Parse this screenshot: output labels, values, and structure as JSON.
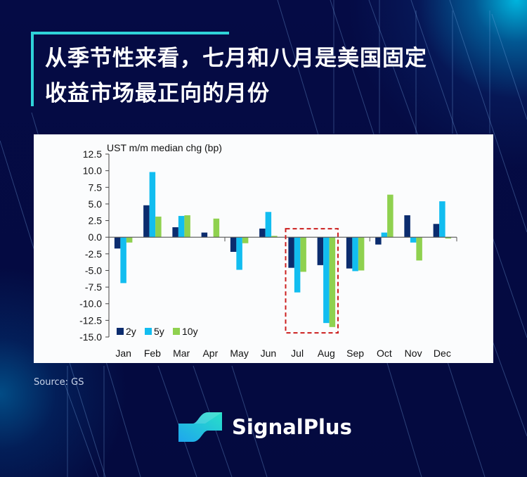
{
  "header": {
    "title_line1": "从季节性来看，七月和八月是美国固定",
    "title_line2": "收益市场最正向的月份",
    "accent_color": "#2fd3d8"
  },
  "footer": {
    "source": "Source: GS",
    "brand": "SignalPlus"
  },
  "chart_data": {
    "type": "bar",
    "title": "UST m/m median chg (bp)",
    "xlabel": "",
    "ylabel": "UST m/m median chg (bp)",
    "ylim": [
      -15.0,
      12.5
    ],
    "yticks": [
      12.5,
      10.0,
      7.5,
      5.0,
      2.5,
      0.0,
      -2.5,
      -5.0,
      -7.5,
      -10.0,
      -12.5,
      -15.0
    ],
    "ytick_labels": [
      "12.5",
      "10.0",
      "7.5",
      "5.0",
      "2.5",
      "0.0",
      "-2.5",
      "-5.0",
      "-7.5",
      "-10.0",
      "-12.5",
      "-15.0"
    ],
    "grid": false,
    "legend_position": "lower-left",
    "categories": [
      "Jan",
      "Feb",
      "Mar",
      "Apr",
      "May",
      "Jun",
      "Jul",
      "Aug",
      "Sep",
      "Oct",
      "Nov",
      "Dec"
    ],
    "series": [
      {
        "name": "2y",
        "color": "#0b2c6e",
        "values": [
          -1.7,
          4.8,
          1.5,
          0.7,
          -2.2,
          1.3,
          -4.6,
          -4.2,
          -4.7,
          -1.1,
          3.3,
          2.0
        ]
      },
      {
        "name": "5y",
        "color": "#12bdf0",
        "values": [
          -6.9,
          9.8,
          3.2,
          0.0,
          -4.9,
          3.8,
          -8.3,
          -12.9,
          -5.1,
          0.7,
          -0.8,
          5.4
        ]
      },
      {
        "name": "10y",
        "color": "#8fd14f",
        "values": [
          -0.8,
          3.1,
          3.3,
          2.8,
          -0.9,
          0.2,
          -5.2,
          -13.5,
          -5.0,
          6.4,
          -3.5,
          -0.2
        ]
      }
    ],
    "annotations": [
      {
        "type": "dashed-box",
        "color": "#cc1f1f",
        "around": [
          "Jul",
          "Aug"
        ]
      }
    ]
  }
}
